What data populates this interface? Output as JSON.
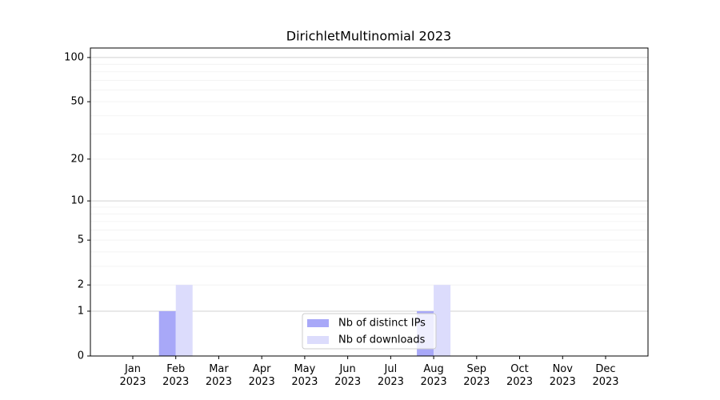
{
  "chart_data": {
    "type": "bar",
    "title": "DirichletMultinomial 2023",
    "categories": [
      "Jan 2023",
      "Feb 2023",
      "Mar 2023",
      "Apr 2023",
      "May 2023",
      "Jun 2023",
      "Jul 2023",
      "Aug 2023",
      "Sep 2023",
      "Oct 2023",
      "Nov 2023",
      "Dec 2023"
    ],
    "series": [
      {
        "name": "Nb of distinct IPs",
        "color": "#a8a8f8",
        "values": [
          0,
          1,
          0,
          0,
          0,
          0,
          0,
          1,
          0,
          0,
          0,
          0
        ]
      },
      {
        "name": "Nb of downloads",
        "color": "#dcdcfc",
        "values": [
          0,
          2,
          0,
          0,
          0,
          0,
          0,
          2,
          0,
          0,
          0,
          0
        ]
      }
    ],
    "yscale": "log1p",
    "ylim": [
      0,
      116
    ],
    "yticks": [
      0,
      1,
      2,
      5,
      10,
      20,
      50,
      100
    ],
    "grid_major": [
      1,
      10,
      100
    ],
    "grid_minor": [
      2,
      3,
      4,
      5,
      6,
      7,
      8,
      9,
      20,
      30,
      40,
      50,
      60,
      70,
      80,
      90
    ],
    "legend": "lower center"
  }
}
